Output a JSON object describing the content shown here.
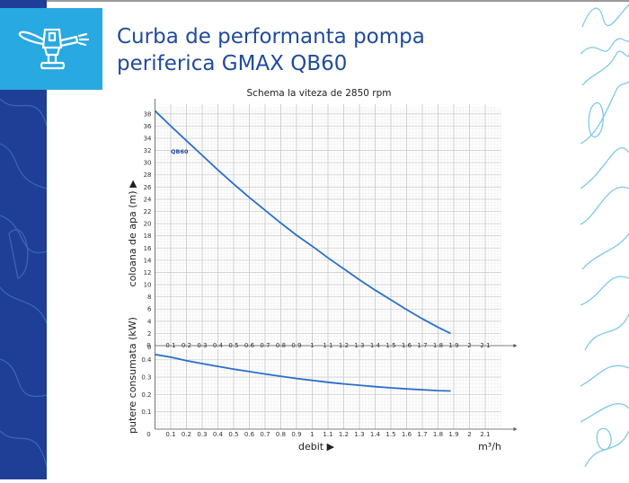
{
  "header": {
    "title_line1": "Curba de performanta pompa",
    "title_line2": "periferica GMAX QB60",
    "logo_icon": "sprinkler-icon"
  },
  "colors": {
    "brand_blue": "#1f4b9b",
    "logo_bg": "#29a9e1",
    "strip": "#1e3f95",
    "curve": "#2a6fc9"
  },
  "chart_data": [
    {
      "type": "line",
      "title": "Schema la viteza de 2850 rpm",
      "ylabel": "coloana de apa (m) ▶",
      "xlim": [
        0,
        2.2
      ],
      "ylim": [
        0,
        39
      ],
      "x_ticks": [
        "0",
        "0.1",
        "0.2",
        "0.3",
        "0.4",
        "0.5",
        "0.6",
        "0.7",
        "0.8",
        "0.9",
        "1",
        "1.1",
        "1.2",
        "1.3",
        "1.4",
        "1.5",
        "1.6",
        "1.7",
        "1.8",
        "1.9",
        "2",
        "2.1"
      ],
      "y_ticks": [
        "0",
        "2",
        "4",
        "6",
        "8",
        "10",
        "12",
        "14",
        "16",
        "18",
        "20",
        "22",
        "24",
        "26",
        "28",
        "30",
        "32",
        "34",
        "36",
        "38"
      ],
      "grid": true,
      "series": [
        {
          "name": "QB60",
          "x": [
            0,
            0.1,
            0.2,
            0.3,
            0.4,
            0.5,
            0.6,
            0.7,
            0.8,
            0.9,
            1.0,
            1.1,
            1.2,
            1.3,
            1.4,
            1.5,
            1.6,
            1.7,
            1.8,
            1.88
          ],
          "y": [
            38.5,
            36,
            33.6,
            31.2,
            28.8,
            26.5,
            24.3,
            22.2,
            20.1,
            18.1,
            16.3,
            14.4,
            12.6,
            10.8,
            9.1,
            7.5,
            5.9,
            4.4,
            3.0,
            2.0
          ]
        }
      ]
    },
    {
      "type": "line",
      "ylabel": "putere consumata (kW)",
      "xlabel": "debit ▶",
      "xunit": "m³/h",
      "xlim": [
        0,
        2.2
      ],
      "ylim": [
        0,
        0.44
      ],
      "x_ticks": [
        "0",
        "0.1",
        "0.2",
        "0.3",
        "0.4",
        "0.5",
        "0.6",
        "0.7",
        "0.8",
        "0.9",
        "1",
        "1.1",
        "1.2",
        "1.3",
        "1.4",
        "1.5",
        "1.6",
        "1.7",
        "1.8",
        "1.9",
        "2",
        "2.1"
      ],
      "y_ticks": [
        "0.1",
        "0.2",
        "0.3",
        "0.4"
      ],
      "grid": true,
      "series": [
        {
          "x": [
            0,
            0.1,
            0.2,
            0.3,
            0.4,
            0.5,
            0.6,
            0.7,
            0.8,
            0.9,
            1.0,
            1.1,
            1.2,
            1.3,
            1.4,
            1.5,
            1.6,
            1.7,
            1.8,
            1.88
          ],
          "y": [
            0.43,
            0.415,
            0.395,
            0.378,
            0.362,
            0.346,
            0.332,
            0.318,
            0.305,
            0.292,
            0.281,
            0.27,
            0.261,
            0.253,
            0.245,
            0.238,
            0.232,
            0.227,
            0.222,
            0.22
          ]
        }
      ]
    }
  ]
}
